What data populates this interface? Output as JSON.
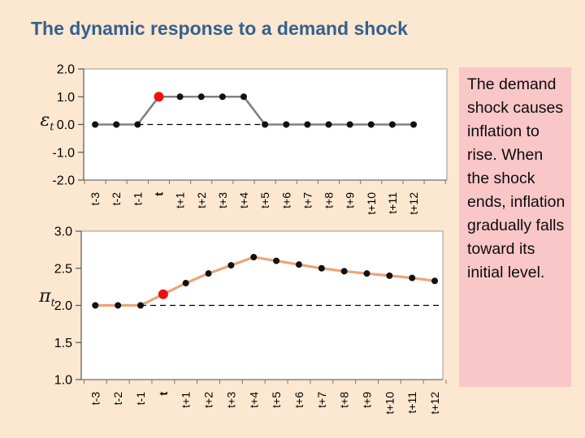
{
  "slide": {
    "title": "The dynamic response to a demand shock",
    "background_color": "#FCE7D0",
    "title_color": "#34618D"
  },
  "note_box": {
    "text": "The demand shock causes inflation to rise. When the shock ends, inflation gradually falls toward its initial level.",
    "background_color": "#FAC7C9"
  },
  "left_axis_symbols": [
    {
      "symbol": "ε",
      "subscript": "t"
    },
    {
      "symbol": "π",
      "subscript": "t"
    }
  ],
  "chart_data": [
    {
      "type": "line",
      "name": "demand-shock-series",
      "title": "",
      "ylabel": "epsilon_t (demand shock)",
      "categories": [
        "t-3",
        "t-2",
        "t-1",
        "t",
        "t+1",
        "t+2",
        "t+3",
        "t+4",
        "t+5",
        "t+6",
        "t+7",
        "t+8",
        "t+9",
        "t+10",
        "t+11",
        "t+12"
      ],
      "values": [
        0.0,
        0.0,
        0.0,
        1.0,
        1.0,
        1.0,
        1.0,
        1.0,
        0.0,
        0.0,
        0.0,
        0.0,
        0.0,
        0.0,
        0.0,
        0.0
      ],
      "ylim": [
        -2.0,
        2.0
      ],
      "ytick_labels": [
        "2.0",
        "1.0",
        "0.0",
        "-1.0",
        "-2.0"
      ],
      "ytick_values": [
        2.0,
        1.0,
        0.0,
        -1.0,
        -2.0
      ],
      "line_color": "#808080",
      "marker_color": "#111111",
      "highlight_index": 3,
      "highlight_color": "#EE1111",
      "bold_category_index": 3,
      "dashed_baseline": {
        "value": 0.0,
        "from_index": 2,
        "to_index": 8
      },
      "grid": false,
      "plot_background": "#FFFFFF"
    },
    {
      "type": "line",
      "name": "inflation-series",
      "title": "",
      "ylabel": "pi_t (inflation)",
      "categories": [
        "t-3",
        "t-2",
        "t-1",
        "t",
        "t+1",
        "t+2",
        "t+3",
        "t+4",
        "t+5",
        "t+6",
        "t+7",
        "t+8",
        "t+9",
        "t+10",
        "t+11",
        "t+12"
      ],
      "values": [
        2.0,
        2.0,
        2.0,
        2.15,
        2.3,
        2.43,
        2.54,
        2.65,
        2.6,
        2.55,
        2.5,
        2.46,
        2.43,
        2.4,
        2.37,
        2.33
      ],
      "ylim": [
        1.0,
        3.0
      ],
      "ytick_labels": [
        "3.0",
        "2.5",
        "2.0",
        "1.5",
        "1.0"
      ],
      "ytick_values": [
        3.0,
        2.5,
        2.0,
        1.5,
        1.0
      ],
      "line_color": "#EDA478",
      "marker_color": "#111111",
      "highlight_index": 3,
      "highlight_color": "#EE1111",
      "bold_category_index": 3,
      "dashed_baseline": {
        "value": 2.0,
        "from_index": 2,
        "to_index": "end"
      },
      "grid": false,
      "plot_background": "#FFFFFF"
    }
  ]
}
